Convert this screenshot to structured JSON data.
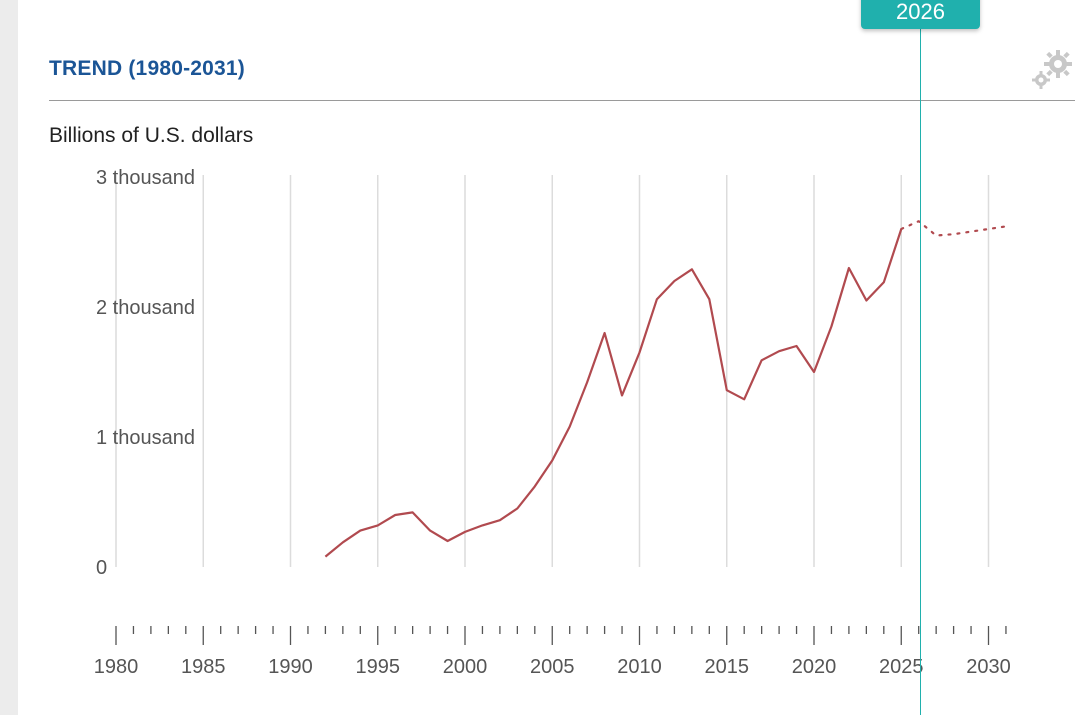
{
  "header": {
    "title": "TREND (1980-2031)",
    "unit_label": "Billions of U.S. dollars"
  },
  "marker": {
    "year_label": "2026",
    "year": 2026
  },
  "colors": {
    "line": "#b14a4f",
    "accent": "#20b0ad",
    "title": "#1b5596"
  },
  "icons": {
    "settings": "gear-icon"
  },
  "chart_data": {
    "type": "line",
    "xlabel": "",
    "ylabel": "Billions of U.S. dollars",
    "xlim": [
      1980,
      2031
    ],
    "ylim": [
      0,
      3000
    ],
    "y_ticks": [
      {
        "value": 0,
        "label": "0"
      },
      {
        "value": 1000,
        "label": "1 thousand"
      },
      {
        "value": 2000,
        "label": "2 thousand"
      },
      {
        "value": 3000,
        "label": "3 thousand"
      }
    ],
    "x_ticks": [
      {
        "value": 1980,
        "label": "1980"
      },
      {
        "value": 1985,
        "label": "1985"
      },
      {
        "value": 1990,
        "label": "1990"
      },
      {
        "value": 1995,
        "label": "1995"
      },
      {
        "value": 2000,
        "label": "2000"
      },
      {
        "value": 2005,
        "label": "2005"
      },
      {
        "value": 2010,
        "label": "2010"
      },
      {
        "value": 2015,
        "label": "2015"
      },
      {
        "value": 2020,
        "label": "2020"
      },
      {
        "value": 2025,
        "label": "2025"
      },
      {
        "value": 2030,
        "label": "2030"
      }
    ],
    "grid": "vertical",
    "series": [
      {
        "style": "solid",
        "x": [
          1992,
          1993,
          1994,
          1995,
          1996,
          1997,
          1998,
          1999,
          2000,
          2001,
          2002,
          2003,
          2004,
          2005,
          2006,
          2007,
          2008,
          2009,
          2010,
          2011,
          2012,
          2013,
          2014,
          2015,
          2016,
          2017,
          2018,
          2019,
          2020,
          2021,
          2022,
          2023,
          2024,
          2025
        ],
        "y": [
          80,
          190,
          280,
          320,
          400,
          420,
          280,
          200,
          270,
          320,
          360,
          450,
          620,
          820,
          1080,
          1420,
          1800,
          1320,
          1650,
          2060,
          2200,
          2290,
          2060,
          1360,
          1290,
          1590,
          1660,
          1700,
          1500,
          1850,
          2300,
          2050,
          2190,
          2600
        ]
      },
      {
        "style": "dotted",
        "x": [
          2025,
          2026,
          2027,
          2028,
          2029,
          2030,
          2031
        ],
        "y": [
          2600,
          2660,
          2550,
          2560,
          2580,
          2600,
          2620
        ]
      }
    ]
  }
}
